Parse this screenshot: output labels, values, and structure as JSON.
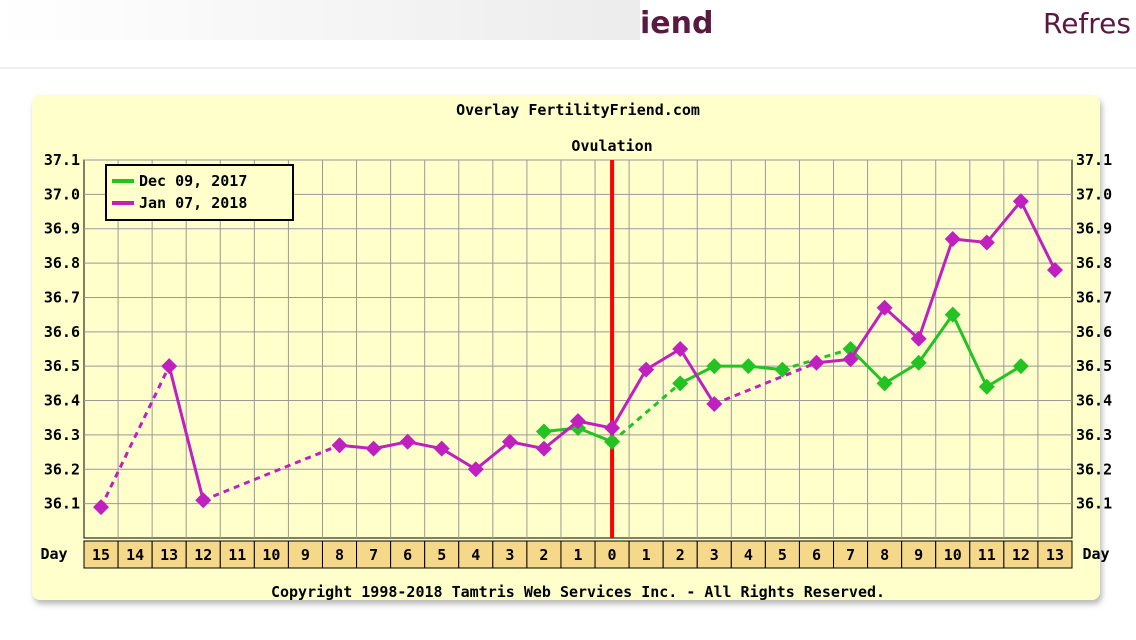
{
  "header": {
    "left_text": "iend",
    "right_text": "Refres"
  },
  "chart_data": {
    "type": "line",
    "title": "Overlay FertilityFriend.com",
    "x_label": "Day",
    "footer": "Copyright 1998-2018 Tamtris Web Services Inc. - All Rights Reserved.",
    "vline": {
      "label": "Ovulation",
      "at": "0",
      "color": "#ff0000"
    },
    "categories": [
      "15",
      "14",
      "13",
      "12",
      "11",
      "10",
      "9",
      "8",
      "7",
      "6",
      "5",
      "4",
      "3",
      "2",
      "1",
      "0",
      "1",
      "2",
      "3",
      "4",
      "5",
      "6",
      "7",
      "8",
      "9",
      "10",
      "11",
      "12",
      "13"
    ],
    "series": [
      {
        "name": "Dec 09, 2017",
        "color": "#22c322",
        "values": [
          null,
          null,
          null,
          null,
          null,
          null,
          null,
          null,
          null,
          null,
          null,
          null,
          null,
          36.31,
          36.32,
          36.28,
          null,
          36.45,
          36.5,
          36.5,
          36.49,
          null,
          36.55,
          36.45,
          36.51,
          36.65,
          36.44,
          36.5,
          null
        ]
      },
      {
        "name": "Jan 07, 2018",
        "color": "#c020c0",
        "values": [
          36.09,
          null,
          36.5,
          36.11,
          null,
          null,
          null,
          36.27,
          36.26,
          36.28,
          36.26,
          36.2,
          36.28,
          36.26,
          36.34,
          36.32,
          36.49,
          36.55,
          36.39,
          null,
          null,
          36.51,
          36.52,
          36.67,
          36.58,
          36.87,
          36.86,
          36.98,
          36.78
        ]
      }
    ],
    "ylim": [
      36.0,
      37.1
    ],
    "yticks": [
      36.1,
      36.2,
      36.3,
      36.4,
      36.5,
      36.6,
      36.7,
      36.8,
      36.9,
      {
        "value": 37,
        "label": "37.0"
      },
      37.1
    ],
    "grid": true,
    "legend": "upper left"
  }
}
